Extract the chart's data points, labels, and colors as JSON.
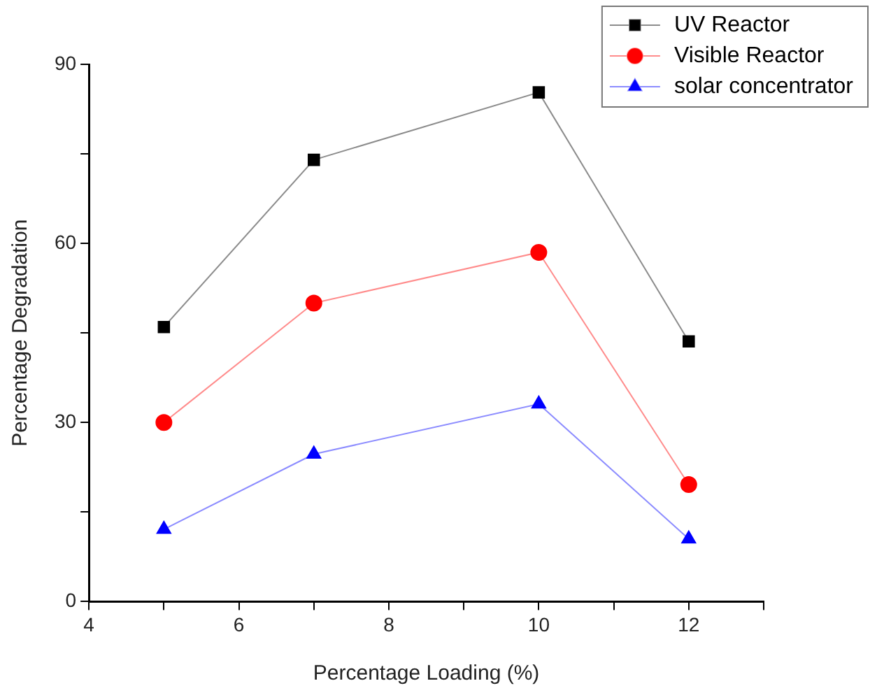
{
  "chart_data": {
    "type": "line",
    "xlabel": "Percentage Loading (%)",
    "ylabel": "Percentage Degradation",
    "x": [
      5,
      7,
      10,
      12
    ],
    "series": [
      {
        "name": "UV Reactor",
        "color": "#000000",
        "marker": "square",
        "values": [
          46,
          74,
          85.3,
          43.6
        ]
      },
      {
        "name": "Visible Reactor",
        "color": "#ff0000",
        "marker": "circle",
        "values": [
          30,
          50,
          58.5,
          19.6
        ]
      },
      {
        "name": "solar concentrator",
        "color": "#0000ff",
        "marker": "triangle",
        "values": [
          12.1,
          24.7,
          33.1,
          10.5
        ]
      }
    ],
    "xlim": [
      4,
      13
    ],
    "xticks": [
      4,
      {
        "value": 5,
        "label": null
      },
      6,
      {
        "value": 7,
        "label": null
      },
      8,
      {
        "value": 9,
        "label": null
      },
      10,
      {
        "value": 11,
        "label": null
      },
      12,
      {
        "value": 13,
        "label": null
      }
    ],
    "ylim": [
      0,
      90
    ],
    "yticks": [
      0,
      {
        "value": 15,
        "label": null
      },
      30,
      {
        "value": 45,
        "label": null
      },
      60,
      {
        "value": 75,
        "label": null
      },
      90
    ],
    "grid": false,
    "legend": "top right",
    "line_style": "solid"
  }
}
